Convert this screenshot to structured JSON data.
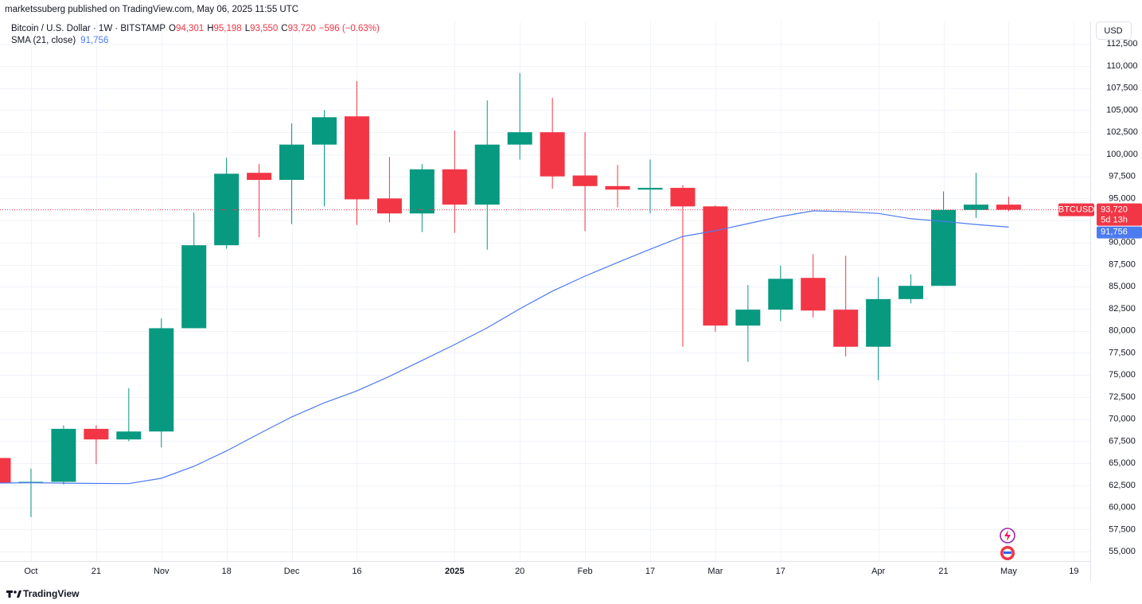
{
  "chart_data": {
    "type": "candlestick",
    "title": "marketssuberg published on TradingView.com, May 06, 2025 11:55 UTC",
    "subtitle": "Bitcoin / U.S. Dollar · 1W · BITSTAMP",
    "header_values": [
      {
        "key": "O",
        "label": "94,301"
      },
      {
        "key": "H",
        "label": "95,198"
      },
      {
        "key": "L",
        "label": "93,550"
      },
      {
        "key": "C",
        "label": "93,720"
      }
    ],
    "change_label": "−596 (−0.63%)",
    "currency": "USD",
    "categories": [
      null,
      "Oct",
      null,
      "21",
      null,
      "Nov",
      null,
      "18",
      null,
      "Dec",
      null,
      "16",
      null,
      null,
      "2025",
      null,
      "20",
      null,
      "Feb",
      null,
      "17",
      null,
      "Mar",
      null,
      "17",
      null,
      null,
      "Apr",
      null,
      "21",
      null,
      "May",
      null,
      "19"
    ],
    "series": [
      {
        "name": "BTCUSD",
        "up_color": "#089981",
        "down_color": "#f23645",
        "open": [
          65600,
          62800,
          62900,
          68900,
          67700,
          68600,
          80300,
          89700,
          97900,
          97100,
          101100,
          104300,
          95000,
          93300,
          98300,
          94300,
          101100,
          102500,
          97600,
          96400,
          96000,
          96200,
          94100,
          80600,
          82400,
          86000,
          82400,
          78200,
          83600,
          85100,
          93700,
          94301,
          null,
          null
        ],
        "high": [
          65800,
          64400,
          69300,
          69300,
          73500,
          81400,
          93400,
          99600,
          98900,
          103500,
          105000,
          108300,
          99700,
          98900,
          102700,
          106100,
          109200,
          106400,
          102500,
          98800,
          99400,
          96500,
          94200,
          85200,
          87400,
          88700,
          88500,
          86100,
          86400,
          95800,
          97900,
          95198,
          null,
          null
        ],
        "low": [
          62500,
          58900,
          62600,
          64900,
          67500,
          66800,
          80300,
          89300,
          90600,
          92100,
          94100,
          92000,
          92300,
          91200,
          91100,
          89200,
          99400,
          96100,
          91300,
          94000,
          93300,
          78200,
          79900,
          76500,
          81100,
          81500,
          77100,
          74400,
          83100,
          85100,
          92800,
          93550,
          null,
          null
        ],
        "close": [
          62800,
          62900,
          68900,
          67700,
          68600,
          80300,
          89700,
          97800,
          97100,
          101100,
          104200,
          94900,
          93300,
          98300,
          94300,
          101100,
          102500,
          97500,
          96400,
          96000,
          96200,
          94100,
          80600,
          82400,
          85900,
          82300,
          78200,
          83600,
          85100,
          93700,
          94300,
          93720,
          null,
          null
        ]
      },
      {
        "name": "SMA (21, close)",
        "color": "#4c7bef",
        "last_label": "91,756",
        "values": [
          62760,
          62800,
          62750,
          62720,
          62700,
          63300,
          64650,
          66400,
          68350,
          70250,
          71850,
          73200,
          74850,
          76650,
          78450,
          80350,
          82500,
          84500,
          86200,
          87750,
          89250,
          90700,
          91350,
          92150,
          92950,
          93600,
          93500,
          93300,
          92700,
          92400,
          92050,
          91756,
          null,
          null
        ]
      }
    ],
    "last_price": {
      "value": 93720,
      "label": "93,720"
    },
    "countdown": "5d 13h",
    "ylim": [
      53900,
      115000
    ],
    "yticks": [
      {
        "value": 55000,
        "label": "55,000"
      },
      {
        "value": 57500,
        "label": "57,500"
      },
      {
        "value": 60000,
        "label": "60,000"
      },
      {
        "value": 62500,
        "label": "62,500"
      },
      {
        "value": 65000,
        "label": "65,000"
      },
      {
        "value": 67500,
        "label": "67,500"
      },
      {
        "value": 70000,
        "label": "70,000"
      },
      {
        "value": 72500,
        "label": "72,500"
      },
      {
        "value": 75000,
        "label": "75,000"
      },
      {
        "value": 77500,
        "label": "77,500"
      },
      {
        "value": 80000,
        "label": "80,000"
      },
      {
        "value": 82500,
        "label": "82,500"
      },
      {
        "value": 85000,
        "label": "85,000"
      },
      {
        "value": 87500,
        "label": "87,500"
      },
      {
        "value": 90000,
        "label": "90,000"
      },
      {
        "value": 92500,
        "label": "92,500"
      },
      {
        "value": 95000,
        "label": "95,000"
      },
      {
        "value": 97500,
        "label": "97,500"
      },
      {
        "value": 100000,
        "label": "100,000"
      },
      {
        "value": 102500,
        "label": "102,500"
      },
      {
        "value": 105000,
        "label": "105,000"
      },
      {
        "value": 107500,
        "label": "107,500"
      },
      {
        "value": 110000,
        "label": "110,000"
      },
      {
        "value": 112500,
        "label": "112,500"
      }
    ],
    "grid": true,
    "brand": "TradingView"
  }
}
